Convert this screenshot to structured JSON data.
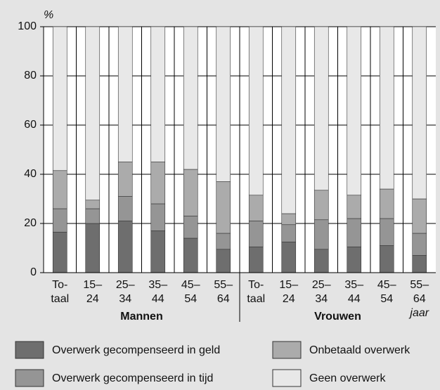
{
  "chart_data": {
    "type": "bar",
    "stacked": true,
    "y_unit": "%",
    "x_unit": "jaar",
    "groups": [
      {
        "name": "Mannen",
        "categories": [
          [
            "To-",
            "taal"
          ],
          [
            "15–",
            "24"
          ],
          [
            "25–",
            "34"
          ],
          [
            "35–",
            "44"
          ],
          [
            "45–",
            "54"
          ],
          [
            "55–",
            "64"
          ]
        ]
      },
      {
        "name": "Vrouwen",
        "categories": [
          [
            "To-",
            "taal"
          ],
          [
            "15–",
            "24"
          ],
          [
            "25–",
            "34"
          ],
          [
            "35–",
            "44"
          ],
          [
            "45–",
            "54"
          ],
          [
            "55–",
            "64"
          ]
        ]
      }
    ],
    "series": [
      {
        "name": "Overwerk gecompenseerd in geld",
        "color": "#6e6e6e",
        "values": [
          16.5,
          20,
          21,
          17,
          14,
          9.5,
          10.5,
          12.5,
          9.5,
          10.5,
          11,
          7
        ]
      },
      {
        "name": "Overwerk gecompenseerd in tijd",
        "color": "#959595",
        "values": [
          9.5,
          6,
          10,
          11,
          9,
          6.5,
          10.5,
          7,
          12,
          11.5,
          11,
          9
        ]
      },
      {
        "name": "Onbetaald overwerk",
        "color": "#ababab",
        "values": [
          15.5,
          3.5,
          14,
          17,
          19,
          21,
          10.5,
          4.5,
          12,
          9.5,
          12,
          14
        ]
      },
      {
        "name": "Geen overwerk",
        "color": "#e8e8e8",
        "values": [
          58.5,
          70.5,
          55,
          55,
          58,
          63,
          68.5,
          76,
          66.5,
          68.5,
          66,
          70
        ]
      }
    ],
    "ylim": [
      0,
      100
    ],
    "yticks": [
      0,
      20,
      40,
      60,
      80,
      100
    ],
    "grid": true
  }
}
